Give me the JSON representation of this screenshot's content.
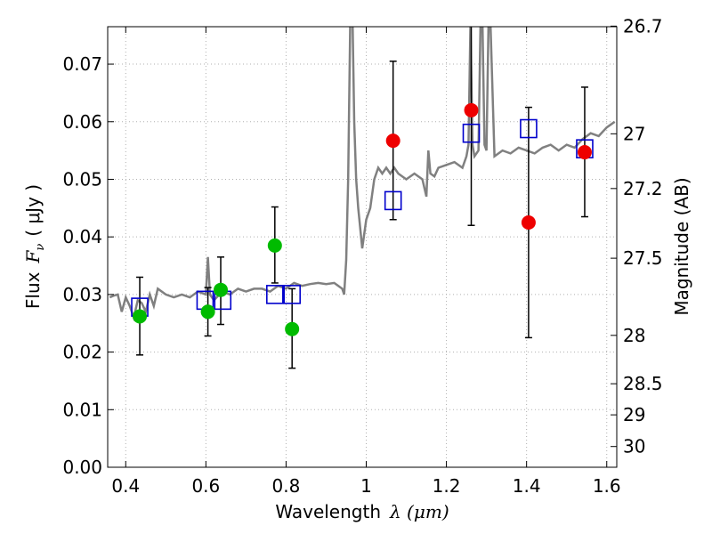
{
  "chart_data": {
    "type": "scatter",
    "xlabel": "Wavelength",
    "xlabel_math": "λ (μm)",
    "ylabel": "Flux",
    "ylabel_math": "F",
    "ylabel_sub": "ν",
    "ylabel_unit": "( μJy )",
    "y2label": "Magnitude (AB)",
    "xlim": [
      0.355,
      1.625
    ],
    "ylim": [
      0.0,
      0.0765
    ],
    "grid": true,
    "x_ticks": [
      0.4,
      0.6,
      0.8,
      1.0,
      1.2,
      1.4,
      1.6
    ],
    "x_tick_labels": [
      "0.4",
      "0.6",
      "0.8",
      "1",
      "1.2",
      "1.4",
      "1.6"
    ],
    "y_ticks": [
      0.0,
      0.01,
      0.02,
      0.03,
      0.04,
      0.05,
      0.06,
      0.07
    ],
    "y_tick_labels": [
      "0.00",
      "0.01",
      "0.02",
      "0.03",
      "0.04",
      "0.05",
      "0.06",
      "0.07"
    ],
    "y2_ticks": [
      {
        "label": "26.7",
        "flux": 0.0766
      },
      {
        "label": "27",
        "flux": 0.0579
      },
      {
        "label": "27.2",
        "flux": 0.0484
      },
      {
        "label": "27.5",
        "flux": 0.0363
      },
      {
        "label": "28",
        "flux": 0.0229
      },
      {
        "label": "28.5",
        "flux": 0.0145
      },
      {
        "label": "29",
        "flux": 0.0091
      },
      {
        "label": "30",
        "flux": 0.0036
      }
    ],
    "colors": {
      "spectrum": "#808080",
      "green": "#00bb00",
      "red": "#ee0000",
      "box": "#0000cc",
      "errorbar": "#000000",
      "grid": "#b0b0b0"
    },
    "spectrum": {
      "x": [
        0.36,
        0.37,
        0.38,
        0.39,
        0.4,
        0.41,
        0.42,
        0.43,
        0.44,
        0.45,
        0.46,
        0.47,
        0.48,
        0.5,
        0.52,
        0.54,
        0.56,
        0.58,
        0.6,
        0.605,
        0.61,
        0.62,
        0.64,
        0.66,
        0.68,
        0.7,
        0.72,
        0.74,
        0.76,
        0.78,
        0.8,
        0.82,
        0.84,
        0.86,
        0.88,
        0.9,
        0.92,
        0.94,
        0.945,
        0.95,
        0.955,
        0.96,
        0.963,
        0.966,
        0.97,
        0.975,
        0.98,
        0.99,
        1.0,
        1.01,
        1.02,
        1.03,
        1.04,
        1.05,
        1.06,
        1.07,
        1.08,
        1.1,
        1.12,
        1.14,
        1.15,
        1.155,
        1.16,
        1.17,
        1.18,
        1.2,
        1.22,
        1.24,
        1.25,
        1.255,
        1.26,
        1.265,
        1.27,
        1.28,
        1.285,
        1.29,
        1.295,
        1.3,
        1.305,
        1.31,
        1.32,
        1.34,
        1.36,
        1.38,
        1.4,
        1.42,
        1.44,
        1.46,
        1.48,
        1.5,
        1.52,
        1.54,
        1.56,
        1.58,
        1.6,
        1.62
      ],
      "y": [
        0.0295,
        0.0298,
        0.03,
        0.027,
        0.0295,
        0.028,
        0.026,
        0.029,
        0.0285,
        0.027,
        0.03,
        0.028,
        0.031,
        0.03,
        0.0295,
        0.03,
        0.0295,
        0.0305,
        0.03,
        0.0365,
        0.03,
        0.029,
        0.0305,
        0.03,
        0.031,
        0.0305,
        0.031,
        0.031,
        0.0305,
        0.0315,
        0.031,
        0.032,
        0.0315,
        0.0318,
        0.032,
        0.0318,
        0.032,
        0.031,
        0.03,
        0.036,
        0.05,
        0.077,
        0.077,
        0.077,
        0.06,
        0.05,
        0.045,
        0.038,
        0.043,
        0.045,
        0.05,
        0.052,
        0.051,
        0.052,
        0.051,
        0.052,
        0.051,
        0.05,
        0.051,
        0.05,
        0.047,
        0.055,
        0.051,
        0.0505,
        0.052,
        0.0525,
        0.053,
        0.052,
        0.054,
        0.056,
        0.077,
        0.056,
        0.054,
        0.055,
        0.077,
        0.077,
        0.056,
        0.055,
        0.077,
        0.077,
        0.054,
        0.055,
        0.0545,
        0.0555,
        0.055,
        0.0545,
        0.0555,
        0.056,
        0.055,
        0.056,
        0.0555,
        0.057,
        0.058,
        0.0575,
        0.059,
        0.06
      ]
    },
    "boxes": [
      {
        "x": 0.435,
        "y": 0.0278
      },
      {
        "x": 0.598,
        "y": 0.029
      },
      {
        "x": 0.642,
        "y": 0.029
      },
      {
        "x": 0.772,
        "y": 0.03
      },
      {
        "x": 0.815,
        "y": 0.03
      },
      {
        "x": 1.067,
        "y": 0.0463
      },
      {
        "x": 1.262,
        "y": 0.058
      },
      {
        "x": 1.405,
        "y": 0.0588
      },
      {
        "x": 1.545,
        "y": 0.0553
      }
    ],
    "green_points": [
      {
        "x": 0.435,
        "y": 0.0262,
        "err_low": 0.0195,
        "err_high": 0.033
      },
      {
        "x": 0.605,
        "y": 0.027,
        "err_low": 0.0228,
        "err_high": 0.0312
      },
      {
        "x": 0.637,
        "y": 0.0308,
        "err_low": 0.0248,
        "err_high": 0.0365
      },
      {
        "x": 0.772,
        "y": 0.0385,
        "err_low": 0.032,
        "err_high": 0.0452
      },
      {
        "x": 0.815,
        "y": 0.024,
        "err_low": 0.0172,
        "err_high": 0.031
      }
    ],
    "red_points": [
      {
        "x": 1.067,
        "y": 0.0567,
        "err_low": 0.043,
        "err_high": 0.0705
      },
      {
        "x": 1.262,
        "y": 0.062,
        "err_low": 0.042,
        "err_high": 0.077
      },
      {
        "x": 1.405,
        "y": 0.0425,
        "err_low": 0.0225,
        "err_high": 0.0625
      },
      {
        "x": 1.545,
        "y": 0.0547,
        "err_low": 0.0435,
        "err_high": 0.066
      }
    ]
  }
}
